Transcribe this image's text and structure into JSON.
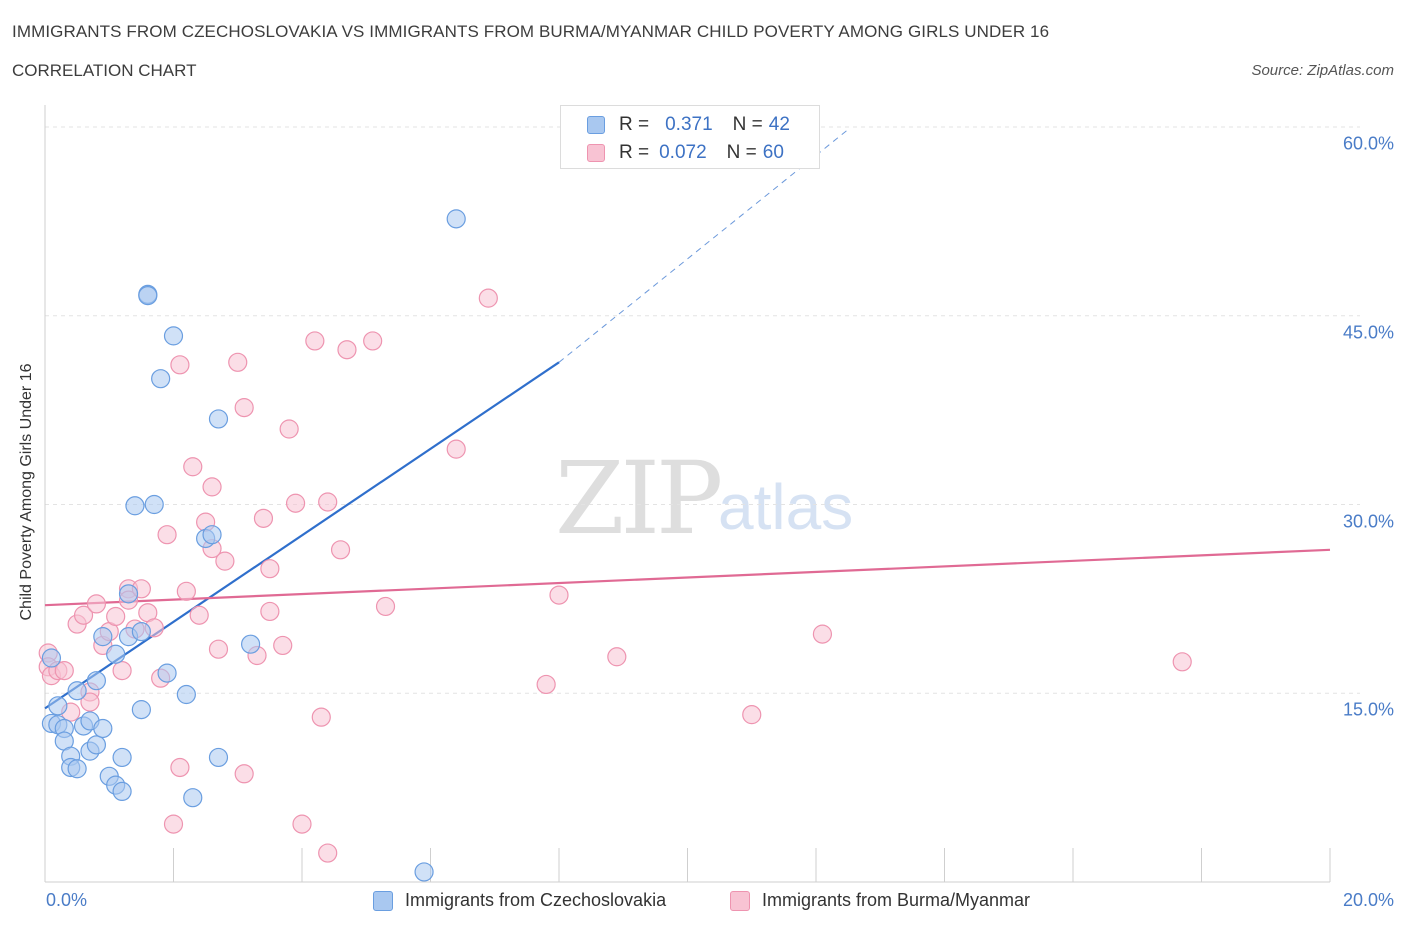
{
  "header": {
    "title": "IMMIGRANTS FROM CZECHOSLOVAKIA VS IMMIGRANTS FROM BURMA/MYANMAR CHILD POVERTY AMONG GIRLS UNDER 16",
    "subtitle": "CORRELATION CHART",
    "source": "Source: ZipAtlas.com"
  },
  "watermark": {
    "zip": "ZIP",
    "atlas": "atlas"
  },
  "legend": {
    "r_label": "R =",
    "n_label": "N =",
    "series1": {
      "r": "0.371",
      "n": "42"
    },
    "series2": {
      "r": "0.072",
      "n": "60"
    }
  },
  "colors": {
    "series1_fill": "#a9c8f0",
    "series1_stroke": "#6a9ee0",
    "series1_line": "#2f6fcc",
    "series2_fill": "#f8c3d3",
    "series2_stroke": "#ee94b0",
    "series2_line": "#e06a94",
    "axis_text": "#4a7cc7"
  },
  "chart_data": {
    "type": "scatter",
    "title": "IMMIGRANTS FROM CZECHOSLOVAKIA VS IMMIGRANTS FROM BURMA/MYANMAR CHILD POVERTY AMONG GIRLS UNDER 16",
    "xlabel": "",
    "ylabel": "Child Poverty Among Girls Under 16",
    "xlim": [
      0,
      20
    ],
    "ylim": [
      0,
      60
    ],
    "x_tick_labels": [
      "0.0%",
      "20.0%"
    ],
    "y_ticks": [
      15,
      30,
      45,
      60
    ],
    "y_tick_labels": [
      "15.0%",
      "30.0%",
      "45.0%",
      "60.0%"
    ],
    "grid": true,
    "legend_position": "top-center",
    "series": [
      {
        "name": "Immigrants from Czechoslovakia",
        "r": 0.371,
        "n": 42,
        "trend": {
          "x0": 0.0,
          "y0": 13.8,
          "x1": 8.0,
          "y1": 41.3,
          "dashed_to": {
            "x": 12.5,
            "y": 59.8
          }
        },
        "points": [
          [
            0.1,
            17.8
          ],
          [
            0.1,
            12.6
          ],
          [
            0.2,
            12.5
          ],
          [
            0.2,
            14.0
          ],
          [
            0.3,
            12.2
          ],
          [
            0.3,
            11.2
          ],
          [
            0.4,
            10.0
          ],
          [
            0.4,
            9.1
          ],
          [
            0.5,
            15.2
          ],
          [
            0.5,
            9.0
          ],
          [
            0.6,
            12.4
          ],
          [
            0.7,
            10.4
          ],
          [
            0.7,
            12.8
          ],
          [
            0.8,
            10.9
          ],
          [
            0.8,
            16.0
          ],
          [
            0.9,
            19.5
          ],
          [
            0.9,
            12.2
          ],
          [
            1.0,
            8.4
          ],
          [
            1.1,
            18.1
          ],
          [
            1.1,
            7.7
          ],
          [
            1.2,
            9.9
          ],
          [
            1.2,
            7.2
          ],
          [
            1.3,
            19.5
          ],
          [
            1.3,
            22.9
          ],
          [
            1.4,
            29.9
          ],
          [
            1.5,
            19.9
          ],
          [
            1.5,
            13.7
          ],
          [
            1.6,
            46.7
          ],
          [
            1.6,
            46.6
          ],
          [
            1.7,
            30.0
          ],
          [
            1.8,
            40.0
          ],
          [
            1.9,
            16.6
          ],
          [
            2.0,
            43.4
          ],
          [
            2.2,
            14.9
          ],
          [
            2.5,
            27.3
          ],
          [
            2.6,
            27.6
          ],
          [
            2.3,
            6.7
          ],
          [
            2.7,
            36.8
          ],
          [
            2.7,
            9.9
          ],
          [
            3.2,
            18.9
          ],
          [
            6.4,
            52.7
          ],
          [
            5.9,
            0.8
          ]
        ]
      },
      {
        "name": "Immigrants from Burma/Myanmar",
        "r": 0.072,
        "n": 60,
        "trend": {
          "x0": 0.0,
          "y0": 22.0,
          "x1": 20.0,
          "y1": 26.4
        },
        "points": [
          [
            0.05,
            18.2
          ],
          [
            0.05,
            17.1
          ],
          [
            0.1,
            16.4
          ],
          [
            0.2,
            16.8
          ],
          [
            0.3,
            16.8
          ],
          [
            0.4,
            13.5
          ],
          [
            0.5,
            20.5
          ],
          [
            0.6,
            21.2
          ],
          [
            0.7,
            15.1
          ],
          [
            0.7,
            14.3
          ],
          [
            0.8,
            22.1
          ],
          [
            0.9,
            18.8
          ],
          [
            1.0,
            19.9
          ],
          [
            1.1,
            21.1
          ],
          [
            1.2,
            16.8
          ],
          [
            1.3,
            23.3
          ],
          [
            1.3,
            22.4
          ],
          [
            1.4,
            20.1
          ],
          [
            1.5,
            23.3
          ],
          [
            1.6,
            21.4
          ],
          [
            1.7,
            20.2
          ],
          [
            1.8,
            16.2
          ],
          [
            1.9,
            27.6
          ],
          [
            2.0,
            4.6
          ],
          [
            2.1,
            9.1
          ],
          [
            2.1,
            41.1
          ],
          [
            2.2,
            23.1
          ],
          [
            2.3,
            33.0
          ],
          [
            2.4,
            21.2
          ],
          [
            2.5,
            28.6
          ],
          [
            2.6,
            26.5
          ],
          [
            2.6,
            31.4
          ],
          [
            2.7,
            18.5
          ],
          [
            2.8,
            25.5
          ],
          [
            3.0,
            41.3
          ],
          [
            3.1,
            37.7
          ],
          [
            3.1,
            8.6
          ],
          [
            3.3,
            18.0
          ],
          [
            3.4,
            28.9
          ],
          [
            3.5,
            21.5
          ],
          [
            3.5,
            24.9
          ],
          [
            3.7,
            18.8
          ],
          [
            3.8,
            36.0
          ],
          [
            3.9,
            30.1
          ],
          [
            4.0,
            4.6
          ],
          [
            4.2,
            43.0
          ],
          [
            4.3,
            13.1
          ],
          [
            4.4,
            30.2
          ],
          [
            4.4,
            2.3
          ],
          [
            4.6,
            26.4
          ],
          [
            4.7,
            42.3
          ],
          [
            5.1,
            43.0
          ],
          [
            5.3,
            21.9
          ],
          [
            6.4,
            34.4
          ],
          [
            6.9,
            46.4
          ],
          [
            7.8,
            15.7
          ],
          [
            8.0,
            22.8
          ],
          [
            8.9,
            17.9
          ],
          [
            11.0,
            13.3
          ],
          [
            12.1,
            19.7
          ],
          [
            17.7,
            17.5
          ]
        ]
      }
    ]
  },
  "bottom_legend": {
    "series1_label": "Immigrants from Czechoslovakia",
    "series2_label": "Immigrants from Burma/Myanmar"
  }
}
